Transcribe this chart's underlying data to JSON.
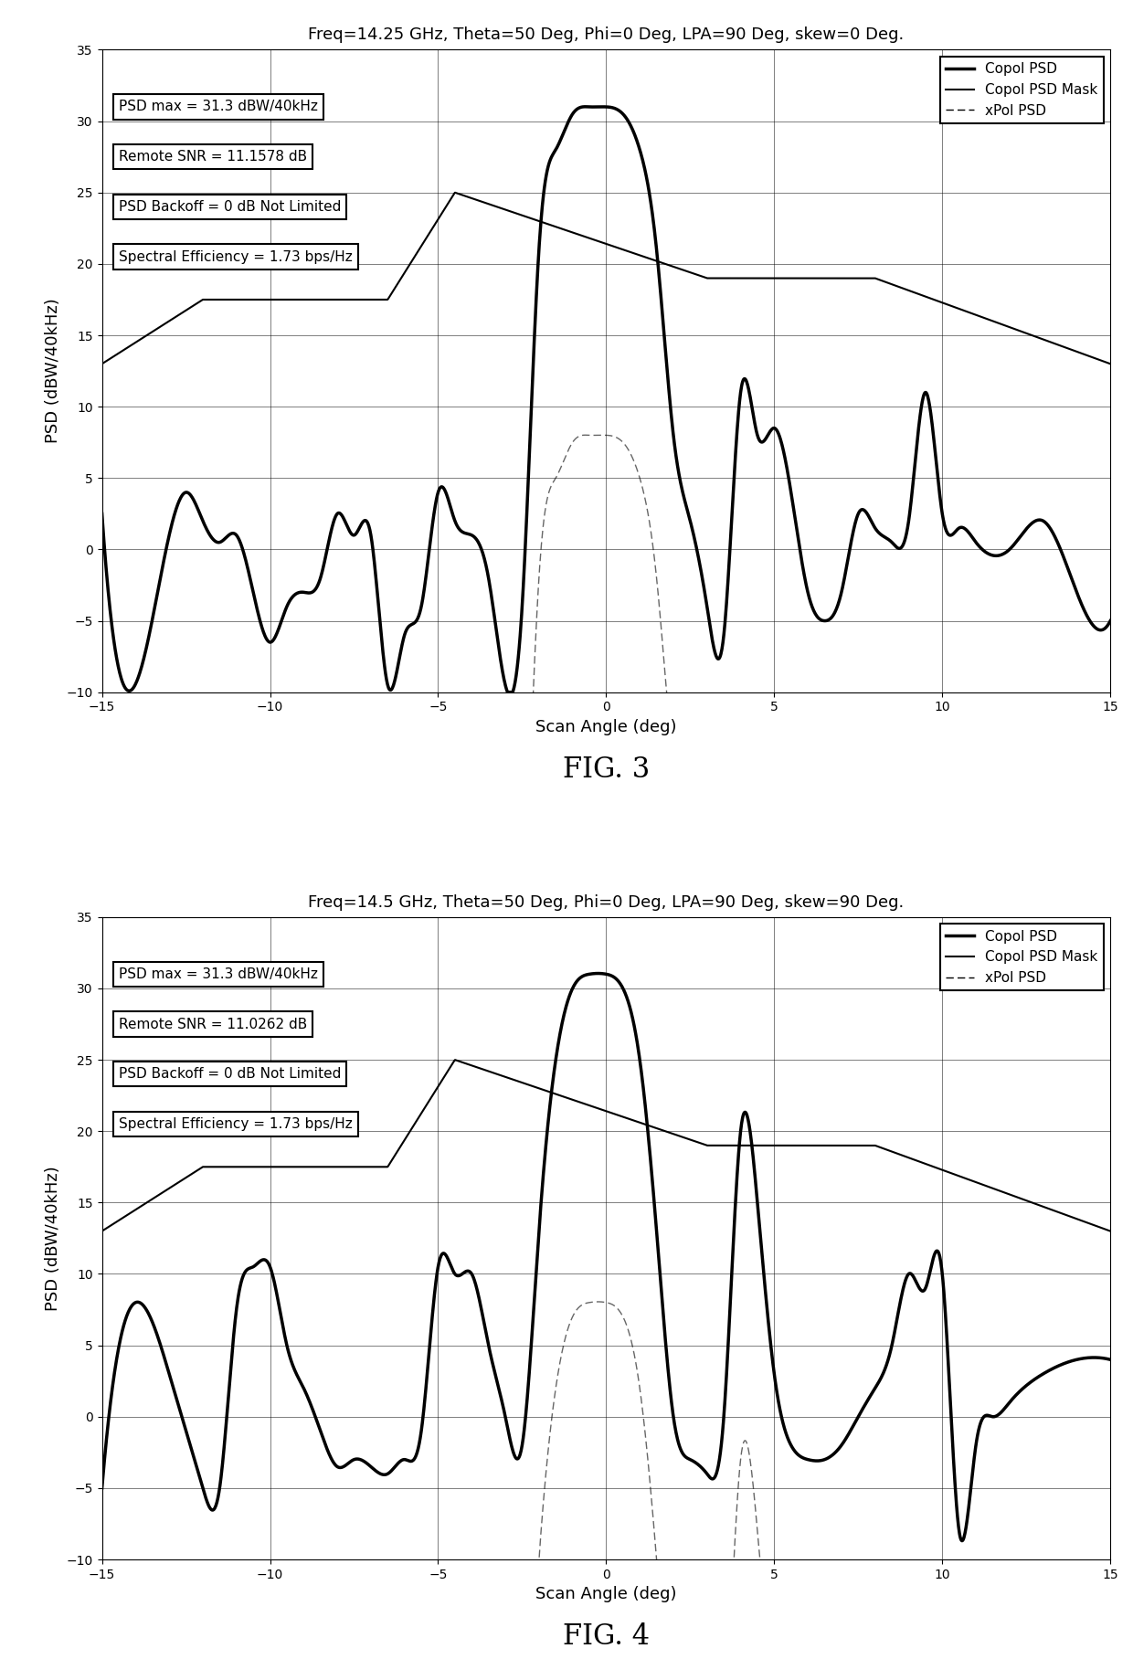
{
  "fig3": {
    "title": "Freq=14.25 GHz, Theta=50 Deg, Phi=0 Deg, LPA=90 Deg, skew=0 Deg.",
    "annotations": [
      "PSD max = 31.3 dBW/40kHz",
      "Remote SNR = 11.1578 dB",
      "PSD Backoff = 0 dB Not Limited",
      "Spectral Efficiency = 1.73 bps/Hz"
    ],
    "fig_label": "FIG. 3"
  },
  "fig4": {
    "title": "Freq=14.5 GHz, Theta=50 Deg, Phi=0 Deg, LPA=90 Deg, skew=90 Deg.",
    "annotations": [
      "PSD max = 31.3 dBW/40kHz",
      "Remote SNR = 11.0262 dB",
      "PSD Backoff = 0 dB Not Limited",
      "Spectral Efficiency = 1.73 bps/Hz"
    ],
    "fig_label": "FIG. 4"
  },
  "xlim": [
    -15,
    15
  ],
  "ylim": [
    -10,
    35
  ],
  "xlabel": "Scan Angle (deg)",
  "ylabel": "PSD (dBW/40kHz)",
  "yticks": [
    -10,
    -5,
    0,
    5,
    10,
    15,
    20,
    25,
    30,
    35
  ],
  "xticks": [
    -15,
    -10,
    -5,
    0,
    5,
    10,
    15
  ],
  "legend_labels": [
    "Copol PSD",
    "Copol PSD Mask",
    "xPol PSD"
  ],
  "background_color": "#ffffff",
  "line_color": "#000000",
  "mask_color": "#000000",
  "xpol_color": "#000000"
}
